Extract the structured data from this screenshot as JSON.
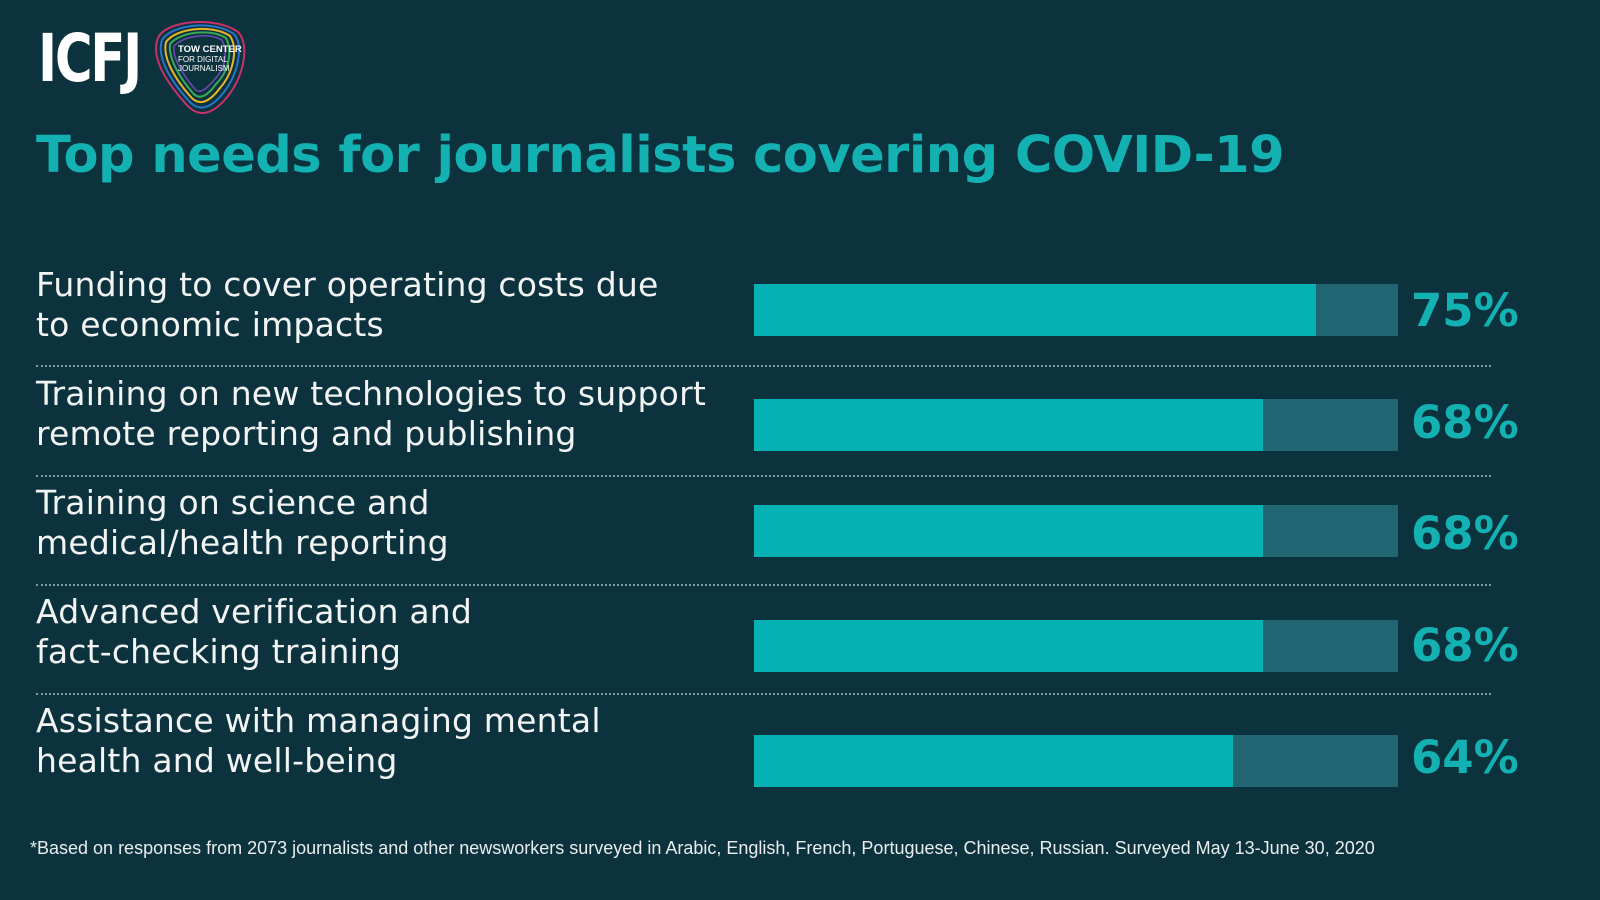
{
  "logos": {
    "primary": "ICFJ",
    "secondary_lines": [
      "TOW CENTER",
      "FOR DIGITAL",
      "JOURNALISM"
    ]
  },
  "colors": {
    "background": "#0c333d",
    "accent": "#14b1b3",
    "bar_fill": "#04b2b3",
    "bar_track": "#226572",
    "text": "#f2f4f4"
  },
  "chart_data": {
    "type": "bar",
    "orientation": "horizontal",
    "title": "Top needs for journalists covering COVID-19",
    "categories": [
      "Funding to cover operating costs due to economic impacts",
      "Training on new technologies to support remote reporting and publishing",
      "Training on science and medical/health reporting",
      "Advanced verification and fact-checking training",
      "Assistance with managing mental health and well-being"
    ],
    "category_lines": [
      [
        "Funding to cover operating costs due",
        "to economic impacts"
      ],
      [
        "Training on new technologies to support",
        "remote reporting and publishing"
      ],
      [
        "Training on science and",
        "medical/health reporting"
      ],
      [
        "Advanced verification and",
        "fact-checking training"
      ],
      [
        "Assistance with managing mental",
        "health and well-being"
      ]
    ],
    "values": [
      75,
      68,
      68,
      68,
      64
    ],
    "value_labels": [
      "75%",
      "68%",
      "68%",
      "68%",
      "64%"
    ],
    "xlim": [
      0,
      86
    ],
    "grid": false,
    "legend": "none"
  },
  "footnote": "*Based on responses from 2073 journalists and other newsworkers surveyed in Arabic, English, French, Portuguese, Chinese, Russian. Surveyed May 13-June 30, 2020"
}
